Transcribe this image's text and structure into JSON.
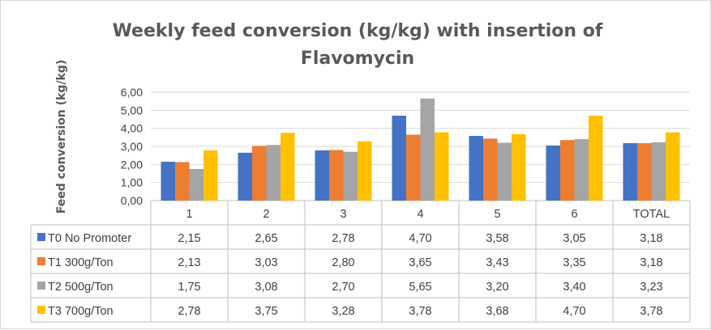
{
  "chart_data": {
    "type": "bar",
    "title": "Weekly feed conversion (kg/kg) with insertion of Flavomycin",
    "title_lines": [
      "Weekly feed conversion (kg/kg) with insertion of",
      "Flavomycin"
    ],
    "xlabel": "",
    "ylabel": "Feed conversion  (kg/kg)",
    "ylim": [
      0,
      6
    ],
    "yticks": [
      "0,00",
      "1,00",
      "2,00",
      "3,00",
      "4,00",
      "5,00",
      "6,00"
    ],
    "grid": true,
    "legend": "data-table-left",
    "categories": [
      "1",
      "2",
      "3",
      "4",
      "5",
      "6",
      "TOTAL"
    ],
    "series": [
      {
        "name": "T0 No Promoter",
        "color": "#4472c4",
        "values": [
          2.15,
          2.65,
          2.78,
          4.7,
          3.58,
          3.05,
          3.18
        ],
        "labels": [
          "2,15",
          "2,65",
          "2,78",
          "4,70",
          "3,58",
          "3,05",
          "3,18"
        ]
      },
      {
        "name": "T1 300g/Ton",
        "color": "#ed7d31",
        "values": [
          2.13,
          3.03,
          2.8,
          3.65,
          3.43,
          3.35,
          3.18
        ],
        "labels": [
          "2,13",
          "3,03",
          "2,80",
          "3,65",
          "3,43",
          "3,35",
          "3,18"
        ]
      },
      {
        "name": "T2 500g/Ton",
        "color": "#a5a5a5",
        "values": [
          1.75,
          3.08,
          2.7,
          5.65,
          3.2,
          3.4,
          3.23
        ],
        "labels": [
          "1,75",
          "3,08",
          "2,70",
          "5,65",
          "3,20",
          "3,40",
          "3,23"
        ]
      },
      {
        "name": "T3 700g/Ton",
        "color": "#ffc000",
        "values": [
          2.78,
          3.75,
          3.28,
          3.78,
          3.68,
          4.7,
          3.78
        ],
        "labels": [
          "2,78",
          "3,75",
          "3,28",
          "3,78",
          "3,68",
          "4,70",
          "3,78"
        ]
      }
    ]
  }
}
